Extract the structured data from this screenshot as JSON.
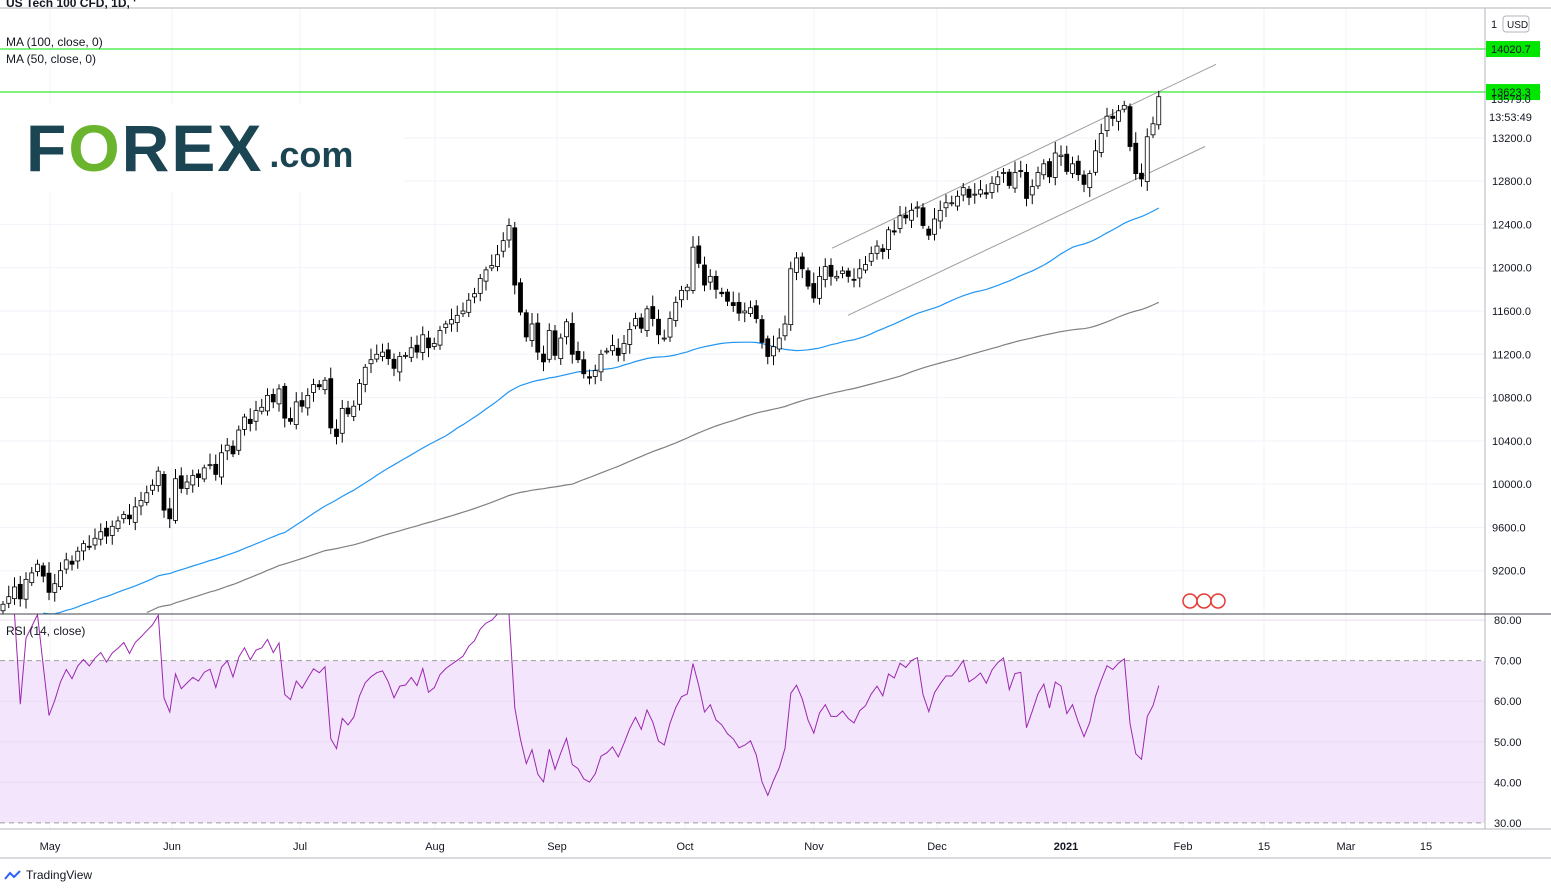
{
  "header": {
    "symbol": "US Tech 100 CFD, 1D, '",
    "ma100": "MA (100, close, 0)",
    "ma50": "MA (50, close, 0)"
  },
  "logo": {
    "part1": "F",
    "part2": "O",
    "part3": "REX",
    "suffix": ".com"
  },
  "rsi": {
    "title": "RSI (14, close)"
  },
  "footer": {
    "brand": "TradingView"
  },
  "colors": {
    "up": "#ffffff",
    "down": "#000000",
    "ma50": "#2196f3",
    "ma100": "#808080",
    "channel": "#9e9e9e",
    "level": "#00e600",
    "rsi": "#9c27b0",
    "rsi_band": "#f3e5fc"
  },
  "chart_data": [
    {
      "type": "candlestick",
      "title": "US Tech 100 CFD, 1D",
      "currency": "USD",
      "y_ticks": [
        9200,
        9600,
        10000,
        10400,
        10800,
        11200,
        11600,
        12000,
        12400,
        12800,
        13200
      ],
      "ylim": [
        8800,
        14400
      ],
      "x_ticks": [
        "May",
        "Jun",
        "Jul",
        "Aug",
        "Sep",
        "Oct",
        "Nov",
        "Dec",
        "2021",
        "Feb",
        "15",
        "Mar",
        "15"
      ],
      "price_labels": {
        "level_high": "14020.7",
        "level_mid": "13623.3",
        "last": "13579.0",
        "countdown": "13:53:49",
        "top_partial": "1",
        "currency_badge": "USD"
      },
      "horizontal_levels": [
        14020.7,
        13623.3
      ],
      "channel": {
        "upper": [
          [
            0.05,
            12180
          ],
          [
            1.0,
            13880
          ]
        ],
        "lower": [
          [
            0.0,
            11560
          ],
          [
            1.0,
            13120
          ]
        ]
      },
      "closes": [
        8890,
        8960,
        9050,
        8940,
        9120,
        9180,
        9260,
        9150,
        9000,
        9080,
        9200,
        9300,
        9260,
        9380,
        9450,
        9420,
        9500,
        9560,
        9520,
        9610,
        9660,
        9720,
        9680,
        9790,
        9850,
        9920,
        9990,
        10120,
        9760,
        9680,
        10050,
        9960,
        10020,
        10080,
        10060,
        10150,
        10180,
        10090,
        10290,
        10360,
        10280,
        10500,
        10620,
        10560,
        10680,
        10710,
        10820,
        10760,
        10880,
        10610,
        10580,
        10760,
        10720,
        10820,
        10920,
        10900,
        10960,
        10520,
        10440,
        10700,
        10650,
        10720,
        10930,
        11080,
        11150,
        11200,
        11220,
        11160,
        11070,
        11180,
        11190,
        11260,
        11220,
        11380,
        11260,
        11300,
        11420,
        11480,
        11520,
        11560,
        11600,
        11700,
        11760,
        11900,
        11980,
        12020,
        12120,
        12250,
        12390,
        11840,
        11590,
        11360,
        11480,
        11220,
        11130,
        11420,
        11190,
        11350,
        11500,
        11200,
        11150,
        11020,
        10980,
        11050,
        11200,
        11230,
        11280,
        11190,
        11300,
        11430,
        11530,
        11440,
        11620,
        11530,
        11380,
        11350,
        11530,
        11680,
        11790,
        11820,
        12190,
        12040,
        11840,
        11920,
        11800,
        11760,
        11690,
        11650,
        11580,
        11600,
        11630,
        11530,
        11310,
        11180,
        11270,
        11350,
        11480,
        11990,
        12090,
        11990,
        11830,
        11720,
        11920,
        12010,
        11920,
        11920,
        11970,
        11920,
        11890,
        11990,
        12030,
        12130,
        12200,
        12150,
        12350,
        12330,
        12480,
        12460,
        12530,
        12560,
        12390,
        12300,
        12450,
        12530,
        12600,
        12600,
        12660,
        12740,
        12650,
        12680,
        12720,
        12680,
        12780,
        12840,
        12880,
        12760,
        12880,
        12890,
        12640,
        12750,
        12880,
        12960,
        12840,
        13060,
        13040,
        12890,
        12960,
        12860,
        12770,
        12870,
        13080,
        13240,
        13400,
        13380,
        13450,
        13500,
        13120,
        12870,
        12820,
        13210,
        13330,
        13580
      ]
    },
    {
      "type": "line",
      "title": "RSI (14, close)",
      "y_ticks": [
        30,
        40,
        50,
        60,
        70,
        80
      ],
      "ylim": [
        28.5,
        81.5
      ],
      "overbought": 70,
      "oversold": 30,
      "x_ticks": [
        "May",
        "Jun",
        "Jul",
        "Aug",
        "Sep",
        "Oct",
        "Nov",
        "Dec",
        "2021",
        "Feb",
        "15",
        "Mar",
        "15"
      ]
    }
  ]
}
